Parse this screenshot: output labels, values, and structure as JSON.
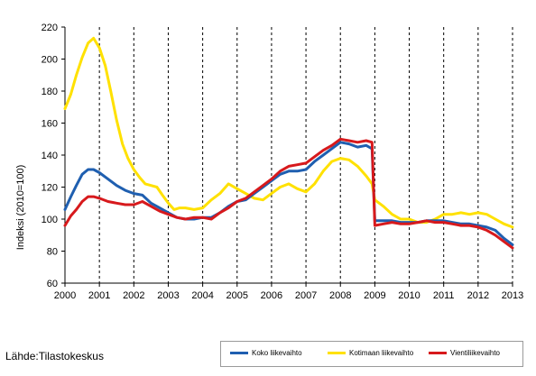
{
  "source_label": "Lähde:Tilastokeskus",
  "chart_data": {
    "type": "line",
    "ylabel": "Indeksi (2010=100)",
    "ylim": [
      60,
      220
    ],
    "yticks": [
      60,
      80,
      100,
      120,
      140,
      160,
      180,
      200,
      220
    ],
    "xlim": [
      2000,
      2013
    ],
    "xticks": [
      2000,
      2001,
      2002,
      2003,
      2004,
      2005,
      2006,
      2007,
      2008,
      2009,
      2010,
      2011,
      2012,
      2013
    ],
    "grid": "vertical dashed at years",
    "legend_position": "bottom-right",
    "series": [
      {
        "name": "Koko liikevaihto",
        "color": "#1f5fb0",
        "points": [
          [
            2000.0,
            106
          ],
          [
            2000.17,
            114
          ],
          [
            2000.33,
            121
          ],
          [
            2000.5,
            128
          ],
          [
            2000.67,
            131
          ],
          [
            2000.83,
            131
          ],
          [
            2001.0,
            129
          ],
          [
            2001.25,
            125
          ],
          [
            2001.5,
            121
          ],
          [
            2001.75,
            118
          ],
          [
            2002.0,
            116
          ],
          [
            2002.25,
            115
          ],
          [
            2002.5,
            110
          ],
          [
            2002.75,
            107
          ],
          [
            2003.0,
            104
          ],
          [
            2003.25,
            101
          ],
          [
            2003.5,
            100
          ],
          [
            2003.75,
            100
          ],
          [
            2004.0,
            101
          ],
          [
            2004.25,
            101
          ],
          [
            2004.5,
            104
          ],
          [
            2004.75,
            108
          ],
          [
            2005.0,
            111
          ],
          [
            2005.25,
            112
          ],
          [
            2005.5,
            116
          ],
          [
            2005.75,
            120
          ],
          [
            2006.0,
            124
          ],
          [
            2006.25,
            128
          ],
          [
            2006.5,
            130
          ],
          [
            2006.75,
            130
          ],
          [
            2007.0,
            131
          ],
          [
            2007.25,
            136
          ],
          [
            2007.5,
            140
          ],
          [
            2007.75,
            144
          ],
          [
            2008.0,
            148
          ],
          [
            2008.25,
            147
          ],
          [
            2008.5,
            145
          ],
          [
            2008.75,
            146
          ],
          [
            2008.92,
            144
          ],
          [
            2009.0,
            99
          ],
          [
            2009.25,
            99
          ],
          [
            2009.5,
            99
          ],
          [
            2009.75,
            98
          ],
          [
            2010.0,
            98
          ],
          [
            2010.25,
            98
          ],
          [
            2010.5,
            99
          ],
          [
            2010.75,
            99
          ],
          [
            2011.0,
            99
          ],
          [
            2011.25,
            98
          ],
          [
            2011.5,
            97
          ],
          [
            2011.75,
            97
          ],
          [
            2012.0,
            96
          ],
          [
            2012.25,
            95
          ],
          [
            2012.5,
            93
          ],
          [
            2012.75,
            88
          ],
          [
            2013.0,
            84
          ]
        ]
      },
      {
        "name": "Kotimaan liikevaihto",
        "color": "#ffe100",
        "points": [
          [
            2000.0,
            169
          ],
          [
            2000.17,
            178
          ],
          [
            2000.33,
            190
          ],
          [
            2000.5,
            201
          ],
          [
            2000.67,
            210
          ],
          [
            2000.83,
            213
          ],
          [
            2001.0,
            207
          ],
          [
            2001.17,
            196
          ],
          [
            2001.33,
            180
          ],
          [
            2001.5,
            162
          ],
          [
            2001.67,
            147
          ],
          [
            2001.83,
            138
          ],
          [
            2002.0,
            131
          ],
          [
            2002.17,
            126
          ],
          [
            2002.33,
            122
          ],
          [
            2002.5,
            121
          ],
          [
            2002.67,
            120
          ],
          [
            2002.83,
            115
          ],
          [
            2003.0,
            110
          ],
          [
            2003.17,
            106
          ],
          [
            2003.33,
            107
          ],
          [
            2003.5,
            107
          ],
          [
            2003.75,
            106
          ],
          [
            2004.0,
            107
          ],
          [
            2004.25,
            112
          ],
          [
            2004.5,
            116
          ],
          [
            2004.75,
            122
          ],
          [
            2005.0,
            119
          ],
          [
            2005.25,
            116
          ],
          [
            2005.5,
            113
          ],
          [
            2005.75,
            112
          ],
          [
            2006.0,
            116
          ],
          [
            2006.25,
            120
          ],
          [
            2006.5,
            122
          ],
          [
            2006.75,
            119
          ],
          [
            2007.0,
            117
          ],
          [
            2007.25,
            122
          ],
          [
            2007.5,
            130
          ],
          [
            2007.75,
            136
          ],
          [
            2008.0,
            138
          ],
          [
            2008.25,
            137
          ],
          [
            2008.5,
            133
          ],
          [
            2008.75,
            127
          ],
          [
            2008.92,
            122
          ],
          [
            2009.0,
            112
          ],
          [
            2009.25,
            108
          ],
          [
            2009.5,
            103
          ],
          [
            2009.75,
            100
          ],
          [
            2010.0,
            100
          ],
          [
            2010.25,
            98
          ],
          [
            2010.5,
            98
          ],
          [
            2010.75,
            100
          ],
          [
            2011.0,
            103
          ],
          [
            2011.25,
            103
          ],
          [
            2011.5,
            104
          ],
          [
            2011.75,
            103
          ],
          [
            2012.0,
            104
          ],
          [
            2012.25,
            103
          ],
          [
            2012.5,
            100
          ],
          [
            2012.75,
            97
          ],
          [
            2013.0,
            95
          ]
        ]
      },
      {
        "name": "Vientiliikevaihto",
        "color": "#d7191c",
        "points": [
          [
            2000.0,
            96
          ],
          [
            2000.17,
            102
          ],
          [
            2000.33,
            106
          ],
          [
            2000.5,
            111
          ],
          [
            2000.67,
            114
          ],
          [
            2000.83,
            114
          ],
          [
            2001.0,
            113
          ],
          [
            2001.25,
            111
          ],
          [
            2001.5,
            110
          ],
          [
            2001.75,
            109
          ],
          [
            2002.0,
            109
          ],
          [
            2002.25,
            111
          ],
          [
            2002.5,
            108
          ],
          [
            2002.75,
            105
          ],
          [
            2003.0,
            103
          ],
          [
            2003.25,
            101
          ],
          [
            2003.5,
            100
          ],
          [
            2003.75,
            101
          ],
          [
            2004.0,
            101
          ],
          [
            2004.25,
            100
          ],
          [
            2004.5,
            104
          ],
          [
            2004.75,
            107
          ],
          [
            2005.0,
            111
          ],
          [
            2005.25,
            113
          ],
          [
            2005.5,
            117
          ],
          [
            2005.75,
            121
          ],
          [
            2006.0,
            125
          ],
          [
            2006.25,
            130
          ],
          [
            2006.5,
            133
          ],
          [
            2006.75,
            134
          ],
          [
            2007.0,
            135
          ],
          [
            2007.25,
            139
          ],
          [
            2007.5,
            143
          ],
          [
            2007.75,
            146
          ],
          [
            2008.0,
            150
          ],
          [
            2008.25,
            149
          ],
          [
            2008.5,
            148
          ],
          [
            2008.75,
            149
          ],
          [
            2008.92,
            148
          ],
          [
            2009.0,
            96
          ],
          [
            2009.25,
            97
          ],
          [
            2009.5,
            98
          ],
          [
            2009.75,
            97
          ],
          [
            2010.0,
            97
          ],
          [
            2010.25,
            98
          ],
          [
            2010.5,
            99
          ],
          [
            2010.75,
            98
          ],
          [
            2011.0,
            98
          ],
          [
            2011.25,
            97
          ],
          [
            2011.5,
            96
          ],
          [
            2011.75,
            96
          ],
          [
            2012.0,
            95
          ],
          [
            2012.25,
            93
          ],
          [
            2012.5,
            90
          ],
          [
            2012.75,
            86
          ],
          [
            2013.0,
            82
          ]
        ]
      }
    ]
  }
}
